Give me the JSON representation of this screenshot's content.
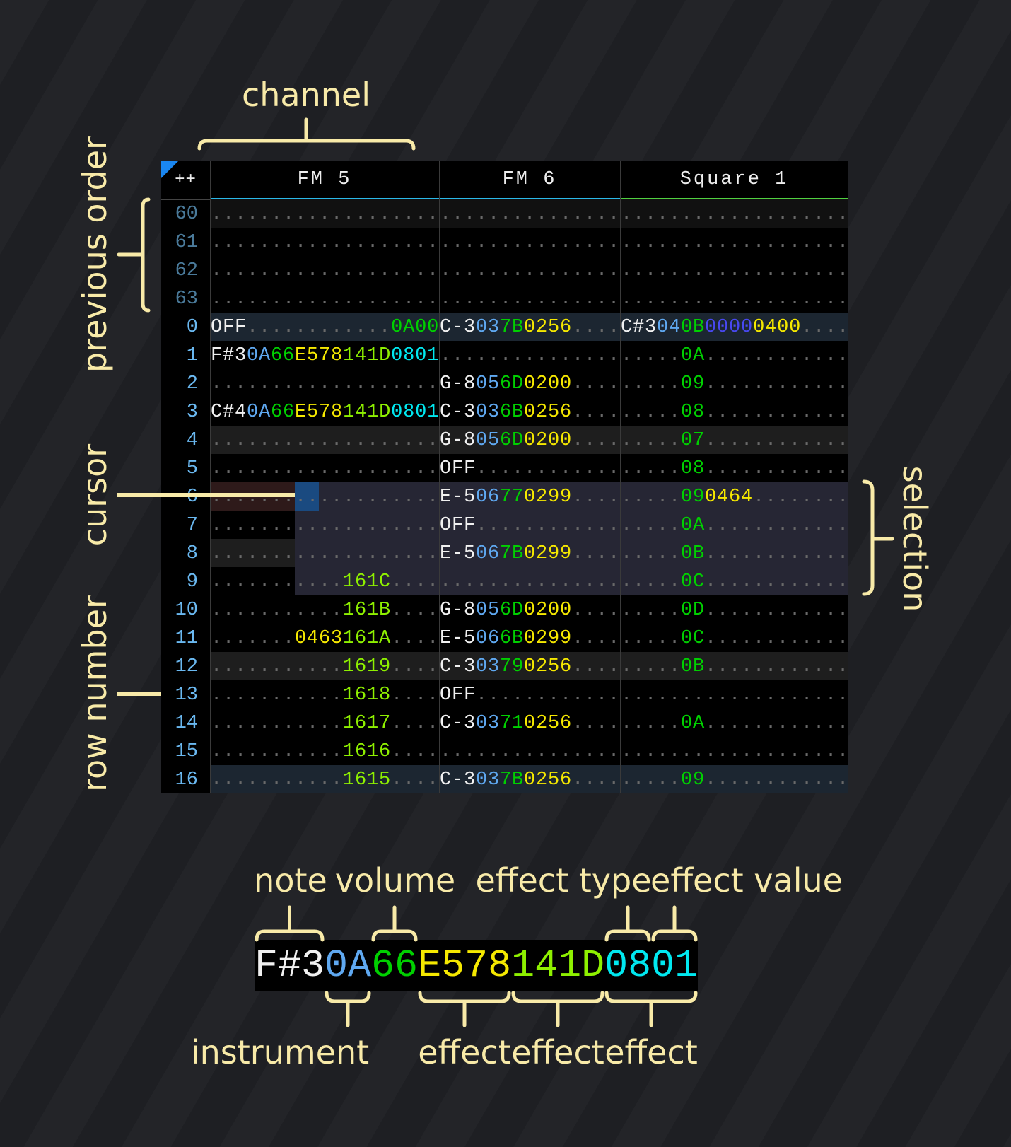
{
  "annotations": {
    "channel": "channel",
    "previous_order": "previous order",
    "cursor": "cursor",
    "row_number": "row number",
    "selection": "selection",
    "note": "note",
    "volume": "volume",
    "effect_type": "effect type",
    "effect_value": "effect value",
    "instrument": "instrument",
    "effect_1": "effect",
    "effect_2": "effect",
    "effect_3": "effect"
  },
  "colors": {
    "note": "#f0f0f0",
    "instrument": "#5fa8f0",
    "volume": "#00d000",
    "effect_yellow": "#f5e800",
    "effect_lime": "#8ef000",
    "effect_cyan": "#00e8f0",
    "effect_purple": "#4848f0",
    "empty": "#6a6a6a",
    "annotation": "#f8eaa8",
    "fm_channel": "#2ab8e8",
    "square_channel": "#50d040",
    "cursor": "#1a4a80"
  },
  "tracker": {
    "corner_label": "++",
    "channels": [
      {
        "name": "FM 5",
        "color": "#2ab8e8"
      },
      {
        "name": "FM 6",
        "color": "#2ab8e8"
      },
      {
        "name": "Square 1",
        "color": "#50d040"
      }
    ],
    "rows": [
      {
        "num": "60",
        "prev": true,
        "bg": "#111111",
        "cells": [
          [
            [
              "...................",
              "d"
            ]
          ],
          [
            [
              "...............",
              "d"
            ]
          ],
          [
            [
              "...................",
              "d"
            ]
          ]
        ]
      },
      {
        "num": "61",
        "prev": true,
        "cells": [
          [
            [
              "...................",
              "d"
            ]
          ],
          [
            [
              "...............",
              "d"
            ]
          ],
          [
            [
              "...................",
              "d"
            ]
          ]
        ]
      },
      {
        "num": "62",
        "prev": true,
        "cells": [
          [
            [
              "...................",
              "d"
            ]
          ],
          [
            [
              "...............",
              "d"
            ]
          ],
          [
            [
              "...................",
              "d"
            ]
          ]
        ]
      },
      {
        "num": "63",
        "prev": true,
        "cells": [
          [
            [
              "...................",
              "d"
            ]
          ],
          [
            [
              "...............",
              "d"
            ]
          ],
          [
            [
              "...................",
              "d"
            ]
          ]
        ]
      },
      {
        "num": "0",
        "bg": "#1c2631",
        "cells": [
          [
            [
              "OFF",
              "n"
            ],
            [
              "............",
              "d"
            ],
            [
              "0A00",
              "v"
            ]
          ],
          [
            [
              "C-3",
              "n"
            ],
            [
              "03",
              "i"
            ],
            [
              "7B",
              "v"
            ],
            [
              "0256",
              "y"
            ],
            [
              "....",
              "d"
            ]
          ],
          [
            [
              "C#3",
              "n"
            ],
            [
              "04",
              "i"
            ],
            [
              "0B",
              "v"
            ],
            [
              "0000",
              "p"
            ],
            [
              "0400",
              "y"
            ],
            [
              "....",
              "d"
            ]
          ]
        ]
      },
      {
        "num": "1",
        "cells": [
          [
            [
              "F#3",
              "n"
            ],
            [
              "0A",
              "i"
            ],
            [
              "66",
              "v"
            ],
            [
              "E578",
              "y"
            ],
            [
              "141D",
              "l"
            ],
            [
              "0801",
              "c"
            ]
          ],
          [
            [
              "...............",
              "d"
            ]
          ],
          [
            [
              ".....",
              "d"
            ],
            [
              "0A",
              "v"
            ],
            [
              "............",
              "d"
            ]
          ]
        ]
      },
      {
        "num": "2",
        "cells": [
          [
            [
              "...................",
              "d"
            ]
          ],
          [
            [
              "G-8",
              "n"
            ],
            [
              "05",
              "i"
            ],
            [
              "6D",
              "v"
            ],
            [
              "0200",
              "y"
            ],
            [
              "....",
              "d"
            ]
          ],
          [
            [
              ".....",
              "d"
            ],
            [
              "09",
              "v"
            ],
            [
              "............",
              "d"
            ]
          ]
        ]
      },
      {
        "num": "3",
        "cells": [
          [
            [
              "C#4",
              "n"
            ],
            [
              "0A",
              "i"
            ],
            [
              "66",
              "v"
            ],
            [
              "E578",
              "y"
            ],
            [
              "141D",
              "l"
            ],
            [
              "0801",
              "c"
            ]
          ],
          [
            [
              "C-3",
              "n"
            ],
            [
              "03",
              "i"
            ],
            [
              "6B",
              "v"
            ],
            [
              "0256",
              "y"
            ],
            [
              "....",
              "d"
            ]
          ],
          [
            [
              ".....",
              "d"
            ],
            [
              "08",
              "v"
            ],
            [
              "............",
              "d"
            ]
          ]
        ]
      },
      {
        "num": "4",
        "bg": "#1e1e1e",
        "cells": [
          [
            [
              "...................",
              "d"
            ]
          ],
          [
            [
              "G-8",
              "n"
            ],
            [
              "05",
              "i"
            ],
            [
              "6D",
              "v"
            ],
            [
              "0200",
              "y"
            ],
            [
              "....",
              "d"
            ]
          ],
          [
            [
              ".....",
              "d"
            ],
            [
              "07",
              "v"
            ],
            [
              "............",
              "d"
            ]
          ]
        ]
      },
      {
        "num": "5",
        "cells": [
          [
            [
              "...................",
              "d"
            ]
          ],
          [
            [
              "OFF",
              "n"
            ],
            [
              "............",
              "d"
            ]
          ],
          [
            [
              ".....",
              "d"
            ],
            [
              "08",
              "v"
            ],
            [
              "............",
              "d"
            ]
          ]
        ]
      },
      {
        "num": "6",
        "cells": [
          [
            [
              "...................",
              "d"
            ]
          ],
          [
            [
              "E-5",
              "n"
            ],
            [
              "06",
              "i"
            ],
            [
              "77",
              "v"
            ],
            [
              "0299",
              "y"
            ],
            [
              "....",
              "d"
            ]
          ],
          [
            [
              ".....",
              "d"
            ],
            [
              "09",
              "v"
            ],
            [
              "0464",
              "y"
            ],
            [
              "........",
              "d"
            ]
          ]
        ]
      },
      {
        "num": "7",
        "cells": [
          [
            [
              "...................",
              "d"
            ]
          ],
          [
            [
              "OFF",
              "n"
            ],
            [
              "............",
              "d"
            ]
          ],
          [
            [
              ".....",
              "d"
            ],
            [
              "0A",
              "v"
            ],
            [
              "............",
              "d"
            ]
          ]
        ]
      },
      {
        "num": "8",
        "bg": "#1e1e1e",
        "cells": [
          [
            [
              "...................",
              "d"
            ]
          ],
          [
            [
              "E-5",
              "n"
            ],
            [
              "06",
              "i"
            ],
            [
              "7B",
              "v"
            ],
            [
              "0299",
              "y"
            ],
            [
              "....",
              "d"
            ]
          ],
          [
            [
              ".....",
              "d"
            ],
            [
              "0B",
              "v"
            ],
            [
              "............",
              "d"
            ]
          ]
        ]
      },
      {
        "num": "9",
        "cells": [
          [
            [
              "...........",
              "d"
            ],
            [
              "161C",
              "l"
            ],
            [
              "....",
              "d"
            ]
          ],
          [
            [
              "...............",
              "d"
            ]
          ],
          [
            [
              ".....",
              "d"
            ],
            [
              "0C",
              "v"
            ],
            [
              "............",
              "d"
            ]
          ]
        ]
      },
      {
        "num": "10",
        "cells": [
          [
            [
              "...........",
              "d"
            ],
            [
              "161B",
              "l"
            ],
            [
              "....",
              "d"
            ]
          ],
          [
            [
              "G-8",
              "n"
            ],
            [
              "05",
              "i"
            ],
            [
              "6D",
              "v"
            ],
            [
              "0200",
              "y"
            ],
            [
              "....",
              "d"
            ]
          ],
          [
            [
              ".....",
              "d"
            ],
            [
              "0D",
              "v"
            ],
            [
              "............",
              "d"
            ]
          ]
        ]
      },
      {
        "num": "11",
        "cells": [
          [
            [
              ".......",
              "d"
            ],
            [
              "0463",
              "y"
            ],
            [
              "161A",
              "l"
            ],
            [
              "....",
              "d"
            ]
          ],
          [
            [
              "E-5",
              "n"
            ],
            [
              "06",
              "i"
            ],
            [
              "6B",
              "v"
            ],
            [
              "0299",
              "y"
            ],
            [
              "....",
              "d"
            ]
          ],
          [
            [
              ".....",
              "d"
            ],
            [
              "0C",
              "v"
            ],
            [
              "............",
              "d"
            ]
          ]
        ]
      },
      {
        "num": "12",
        "bg": "#1e1e1e",
        "cells": [
          [
            [
              "...........",
              "d"
            ],
            [
              "1619",
              "l"
            ],
            [
              "....",
              "d"
            ]
          ],
          [
            [
              "C-3",
              "n"
            ],
            [
              "03",
              "i"
            ],
            [
              "79",
              "v"
            ],
            [
              "0256",
              "y"
            ],
            [
              "....",
              "d"
            ]
          ],
          [
            [
              ".....",
              "d"
            ],
            [
              "0B",
              "v"
            ],
            [
              "............",
              "d"
            ]
          ]
        ]
      },
      {
        "num": "13",
        "cells": [
          [
            [
              "...........",
              "d"
            ],
            [
              "1618",
              "l"
            ],
            [
              "....",
              "d"
            ]
          ],
          [
            [
              "OFF",
              "n"
            ],
            [
              "............",
              "d"
            ]
          ],
          [
            [
              "...................",
              "d"
            ]
          ]
        ]
      },
      {
        "num": "14",
        "cells": [
          [
            [
              "...........",
              "d"
            ],
            [
              "1617",
              "l"
            ],
            [
              "....",
              "d"
            ]
          ],
          [
            [
              "C-3",
              "n"
            ],
            [
              "03",
              "i"
            ],
            [
              "71",
              "v"
            ],
            [
              "0256",
              "y"
            ],
            [
              "....",
              "d"
            ]
          ],
          [
            [
              ".....",
              "d"
            ],
            [
              "0A",
              "v"
            ],
            [
              "............",
              "d"
            ]
          ]
        ]
      },
      {
        "num": "15",
        "cells": [
          [
            [
              "...........",
              "d"
            ],
            [
              "1616",
              "l"
            ],
            [
              "....",
              "d"
            ]
          ],
          [
            [
              "...............",
              "d"
            ]
          ],
          [
            [
              "...................",
              "d"
            ]
          ]
        ]
      },
      {
        "num": "16",
        "bg": "#1c2631",
        "cells": [
          [
            [
              "...........",
              "d"
            ],
            [
              "1615",
              "l"
            ],
            [
              "....",
              "d"
            ]
          ],
          [
            [
              "C-3",
              "n"
            ],
            [
              "03",
              "i"
            ],
            [
              "7B",
              "v"
            ],
            [
              "0256",
              "y"
            ],
            [
              "....",
              "d"
            ]
          ],
          [
            [
              ".....",
              "d"
            ],
            [
              "09",
              "v"
            ],
            [
              "............",
              "d"
            ]
          ]
        ]
      }
    ]
  },
  "key_example": [
    [
      "F#3",
      "n"
    ],
    [
      "0A",
      "i"
    ],
    [
      "66",
      "v"
    ],
    [
      "E578",
      "y"
    ],
    [
      "141D",
      "l"
    ],
    [
      "0801",
      "c"
    ]
  ]
}
